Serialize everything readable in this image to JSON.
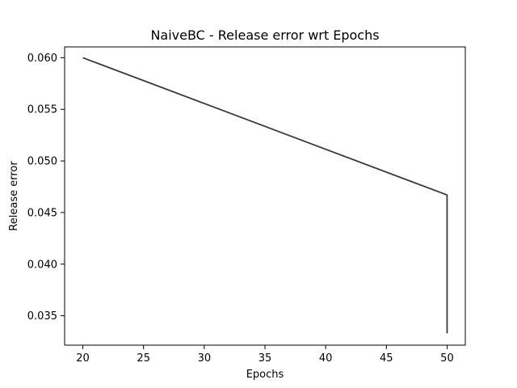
{
  "chart_data": {
    "type": "line",
    "title": "NaiveBC - Release error wrt Epochs",
    "xlabel": "Epochs",
    "ylabel": "Release error",
    "xlim": [
      18.5,
      51.5
    ],
    "ylim": [
      0.03215,
      0.06105
    ],
    "xticks": [
      20,
      25,
      30,
      35,
      40,
      45,
      50
    ],
    "xtick_labels": [
      "20",
      "25",
      "30",
      "35",
      "40",
      "45",
      "50"
    ],
    "yticks": [
      0.035,
      0.04,
      0.045,
      0.05,
      0.055,
      0.06
    ],
    "ytick_labels": [
      "0.035",
      "0.040",
      "0.045",
      "0.050",
      "0.055",
      "0.060"
    ],
    "grid": false,
    "legend": "none",
    "series": [
      {
        "color": "#3a3a3a",
        "x": [
          20,
          50,
          50
        ],
        "y": [
          0.06,
          0.0467,
          0.0333
        ]
      }
    ]
  }
}
